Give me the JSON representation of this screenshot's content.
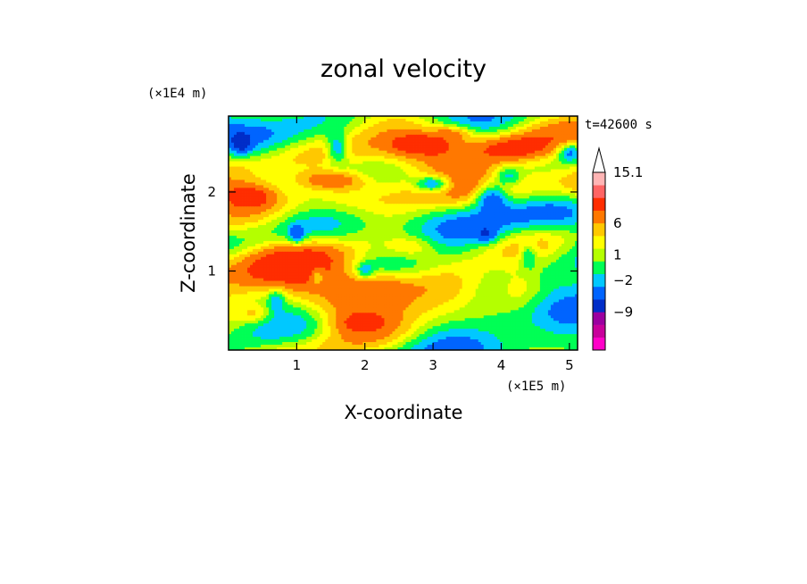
{
  "chart_data": {
    "type": "heatmap",
    "title": "zonal velocity",
    "xlabel": "X-coordinate",
    "ylabel": "Z-coordinate",
    "x_unit": "(×1E5 m)",
    "y_unit": "(×1E4 m)",
    "time_label": "t=42600 s",
    "xlim": [
      0,
      5.12
    ],
    "ylim": [
      0,
      2.96
    ],
    "x_ticks": [
      "1",
      "2",
      "3",
      "4",
      "5"
    ],
    "y_ticks": [
      "1",
      "2"
    ],
    "colorbar": {
      "labels": [
        "15.1",
        "6",
        "1",
        "−2",
        "−9"
      ],
      "colors": [
        "#ff00c8",
        "#c8009b",
        "#9b00a0",
        "#002dc8",
        "#0064ff",
        "#00c8ff",
        "#00ff55",
        "#b4ff00",
        "#ffff00",
        "#ffc800",
        "#ff7800",
        "#ff2d00",
        "#ff6464",
        "#ffb4b4",
        "#ffffff"
      ],
      "top_extension": "open-triangle"
    },
    "note": "Filled contour field of zonal velocity; color levels per colorbar. Field has banded structure with positive (orange/red) values around Z≈2.0 and strong negative (blue) patches near Z≈2.0–2.6 at X≈2.5–4.2."
  }
}
